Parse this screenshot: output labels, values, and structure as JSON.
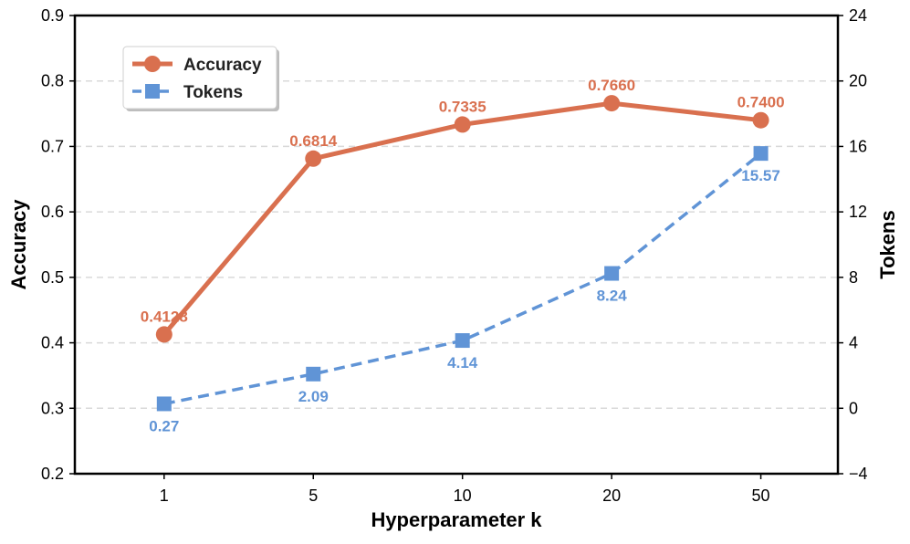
{
  "chart_data": {
    "type": "line",
    "title": "",
    "categories": [
      "1",
      "5",
      "10",
      "20",
      "50"
    ],
    "xlabel": "Hyperparameter k",
    "ylabel": "Accuracy",
    "y2label": "Tokens",
    "ylim": [
      0.2,
      0.9
    ],
    "y2lim": [
      -4,
      24
    ],
    "yticks": [
      "0.2",
      "0.3",
      "0.4",
      "0.5",
      "0.6",
      "0.7",
      "0.8",
      "0.9"
    ],
    "y2ticks": [
      "−4",
      "0",
      "4",
      "8",
      "12",
      "16",
      "20",
      "24"
    ],
    "grid": true,
    "legend_position": "top-left",
    "series": [
      {
        "name": "Accuracy",
        "axis": "left",
        "marker": "circle",
        "line_style": "solid",
        "color": "#d9704f",
        "values": [
          0.4128,
          0.6814,
          0.7335,
          0.766,
          0.74
        ],
        "labels": [
          "0.4128",
          "0.6814",
          "0.7335",
          "0.7660",
          "0.7400"
        ]
      },
      {
        "name": "Tokens",
        "axis": "right",
        "marker": "square",
        "line_style": "dashed",
        "color": "#6094d6",
        "values": [
          0.27,
          2.09,
          4.14,
          8.24,
          15.57
        ],
        "labels": [
          "0.27",
          "2.09",
          "4.14",
          "8.24",
          "15.57"
        ]
      }
    ]
  }
}
